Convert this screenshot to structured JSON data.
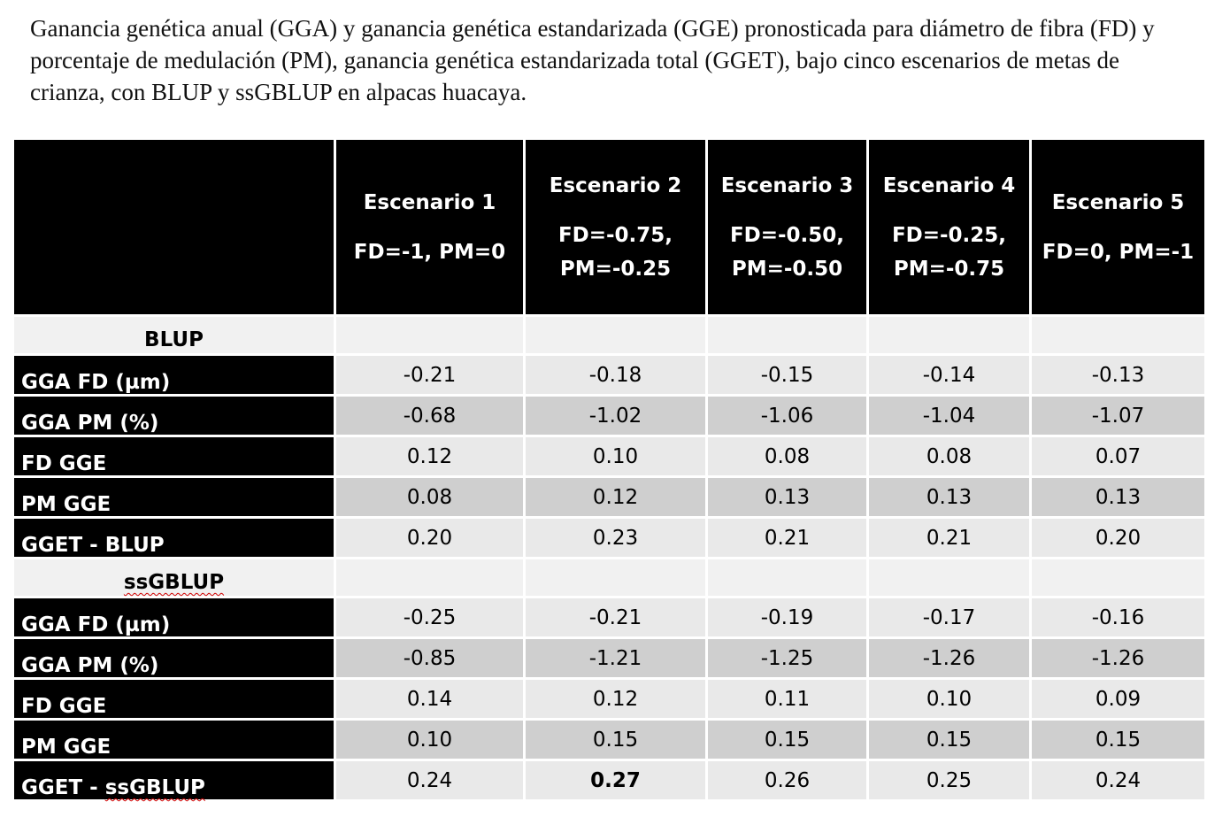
{
  "caption": "Ganancia genética anual (GGA) y ganancia genética estandarizada (GGE)  pronosticada para diámetro de fibra (FD) y porcentaje de medulación (PM), ganancia genética estandarizada total (GGET), bajo cinco escenarios de metas de crianza, con BLUP y ssGBLUP en alpacas huacaya.",
  "scenarios": [
    {
      "name": "Escenario 1",
      "goal": "FD=-1, PM=0"
    },
    {
      "name": "Escenario 2",
      "goal": "FD=-0.75,\nPM=-0.25"
    },
    {
      "name": "Escenario 3",
      "goal": "FD=-0.50,\nPM=-0.50"
    },
    {
      "name": "Escenario 4",
      "goal": "FD=-0.25,\nPM=-0.75"
    },
    {
      "name": "Escenario 5",
      "goal": "FD=0, PM=-1"
    }
  ],
  "sections": [
    {
      "title": "BLUP",
      "rows": [
        {
          "label": "GGA FD (µm)",
          "values": [
            "-0.21",
            "-0.18",
            "-0.15",
            "-0.14",
            "-0.13"
          ]
        },
        {
          "label": "GGA PM (%)",
          "values": [
            "-0.68",
            "-1.02",
            "-1.06",
            "-1.04",
            "-1.07"
          ]
        },
        {
          "label": "FD GGE",
          "values": [
            "0.12",
            "0.10",
            "0.08",
            "0.08",
            "0.07"
          ]
        },
        {
          "label": "PM GGE",
          "values": [
            "0.08",
            "0.12",
            "0.13",
            "0.13",
            "0.13"
          ]
        },
        {
          "label": "GGET - BLUP",
          "values": [
            "0.20",
            "0.23",
            "0.21",
            "0.21",
            "0.20"
          ]
        }
      ]
    },
    {
      "title": "ssGBLUP",
      "rows": [
        {
          "label": "GGA FD (µm)",
          "values": [
            "-0.25",
            "-0.21",
            "-0.19",
            "-0.17",
            "-0.16"
          ]
        },
        {
          "label": "GGA PM (%)",
          "values": [
            "-0.85",
            "-1.21",
            "-1.25",
            "-1.26",
            "-1.26"
          ]
        },
        {
          "label": "FD GGE",
          "values": [
            "0.14",
            "0.12",
            "0.11",
            "0.10",
            "0.09"
          ]
        },
        {
          "label": "PM GGE",
          "values": [
            "0.10",
            "0.15",
            "0.15",
            "0.15",
            "0.15"
          ]
        },
        {
          "label": "GGET - ssGBLUP",
          "values": [
            "0.24",
            "0.27",
            "0.26",
            "0.25",
            "0.24"
          ]
        }
      ]
    }
  ],
  "highlight": {
    "label": "GGET - ssGBLUP",
    "value": "0.27"
  },
  "colors": {
    "header_bg": "#000000",
    "header_text": "#ffffff",
    "row_light": "#e9e9e9",
    "row_dark": "#cfcfcf",
    "section_bg": "#f1f1f1",
    "spellcheck_underline": "#d00000"
  }
}
